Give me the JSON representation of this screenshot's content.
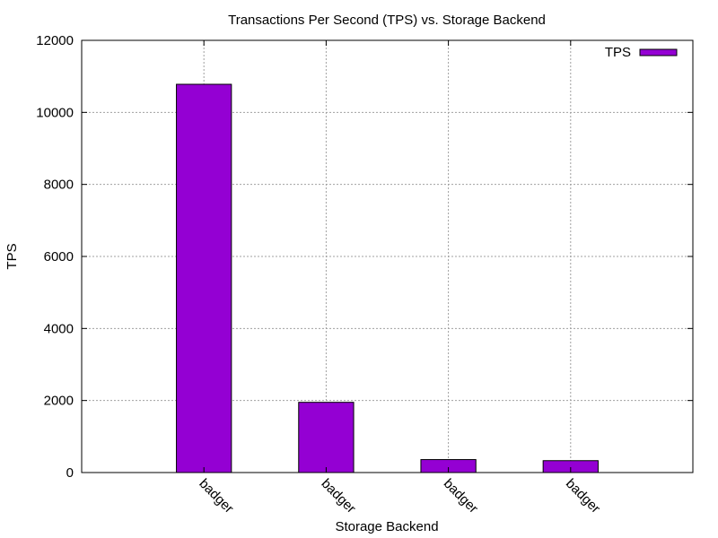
{
  "chart_data": {
    "type": "bar",
    "title": "Transactions Per Second (TPS) vs. Storage Backend",
    "xlabel": "Storage Backend",
    "ylabel": "TPS",
    "categories": [
      "badger",
      "badger",
      "badger",
      "badger"
    ],
    "series": [
      {
        "name": "TPS",
        "values": [
          10780,
          1950,
          360,
          330
        ]
      }
    ],
    "ylim": [
      0,
      12000
    ],
    "yticks": [
      "0",
      "2000",
      "4000",
      "6000",
      "8000",
      "10000",
      "12000"
    ],
    "grid": true,
    "legend_position": "top-right",
    "bar_color": "#9400d3"
  }
}
